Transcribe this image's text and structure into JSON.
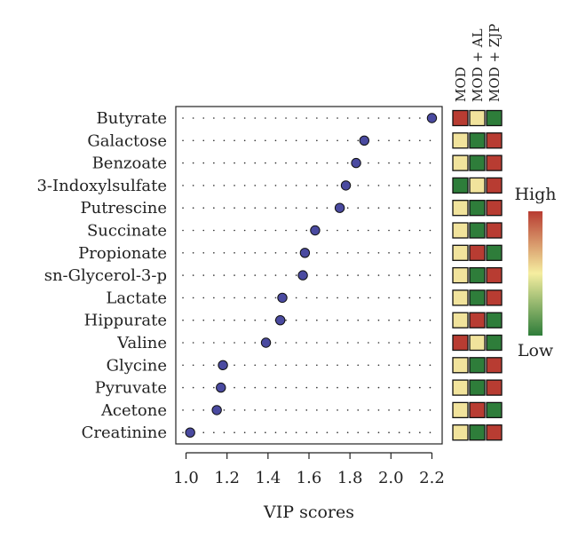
{
  "chart_data": {
    "type": "scatter",
    "xlabel": "VIP scores",
    "ylabel": "",
    "xlim": [
      0.95,
      2.25
    ],
    "xticks": [
      "1.0",
      "1.2",
      "1.4",
      "1.6",
      "1.8",
      "2.0",
      "2.2"
    ],
    "grid": false,
    "point_color": "#4a4aa0",
    "metabolites": [
      {
        "name": "Butyrate",
        "vip": 2.2,
        "heat": [
          "red",
          "yellow",
          "green"
        ]
      },
      {
        "name": "Galactose",
        "vip": 1.87,
        "heat": [
          "yellow",
          "green",
          "red"
        ]
      },
      {
        "name": "Benzoate",
        "vip": 1.83,
        "heat": [
          "yellow",
          "green",
          "red"
        ]
      },
      {
        "name": "3-Indoxylsulfate",
        "vip": 1.78,
        "heat": [
          "green",
          "yellow",
          "red"
        ]
      },
      {
        "name": "Putrescine",
        "vip": 1.75,
        "heat": [
          "yellow",
          "green",
          "red"
        ]
      },
      {
        "name": "Succinate",
        "vip": 1.63,
        "heat": [
          "yellow",
          "green",
          "red"
        ]
      },
      {
        "name": "Propionate",
        "vip": 1.58,
        "heat": [
          "yellow",
          "red",
          "green"
        ]
      },
      {
        "name": "sn-Glycerol-3-p",
        "vip": 1.57,
        "heat": [
          "yellow",
          "green",
          "red"
        ]
      },
      {
        "name": "Lactate",
        "vip": 1.47,
        "heat": [
          "yellow",
          "green",
          "red"
        ]
      },
      {
        "name": "Hippurate",
        "vip": 1.46,
        "heat": [
          "yellow",
          "red",
          "green"
        ]
      },
      {
        "name": "Valine",
        "vip": 1.39,
        "heat": [
          "red",
          "yellow",
          "green"
        ]
      },
      {
        "name": "Glycine",
        "vip": 1.18,
        "heat": [
          "yellow",
          "green",
          "red"
        ]
      },
      {
        "name": "Pyruvate",
        "vip": 1.17,
        "heat": [
          "yellow",
          "green",
          "red"
        ]
      },
      {
        "name": "Acetone",
        "vip": 1.15,
        "heat": [
          "yellow",
          "red",
          "green"
        ]
      },
      {
        "name": "Creatinine",
        "vip": 1.02,
        "heat": [
          "yellow",
          "green",
          "red"
        ]
      }
    ],
    "heatmap": {
      "columns": [
        "MOD",
        "MOD + AL",
        "MOD + ZJP"
      ],
      "colors": {
        "red": "#b83c32",
        "yellow": "#f1e39c",
        "green": "#2e7d3a"
      }
    },
    "legend": {
      "high": "High",
      "low": "Low",
      "gradient": [
        "#b83c32",
        "#f5eea0",
        "#2e7d3a"
      ]
    }
  }
}
